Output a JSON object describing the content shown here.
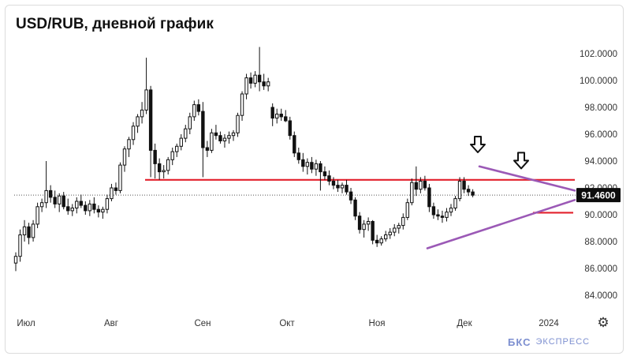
{
  "title": "USD/RUB, дневной график",
  "watermark": {
    "brand": "БКС",
    "word": "ЭКСПРЕСС"
  },
  "settings_icon": "gear-icon",
  "chart_data": {
    "type": "candlestick",
    "title": "USD/RUB, дневной график",
    "ylim": [
      83,
      103
    ],
    "y_ticks": [
      "84.0000",
      "86.0000",
      "88.0000",
      "90.0000",
      "92.0000",
      "94.0000",
      "96.0000",
      "98.0000",
      "100.0000",
      "102.0000"
    ],
    "x_ticks": [
      "Июл",
      "Авг",
      "Сен",
      "Окт",
      "Ноя",
      "Дек",
      "2024"
    ],
    "last_price": "91.4600",
    "last_price_value": 91.46,
    "support_resistance": [
      {
        "value": 92.6,
        "color": "#e3202c"
      },
      {
        "value": 90.15,
        "color": "#e3202c"
      }
    ],
    "trendlines": [
      {
        "from": [
          "2023-11-21",
          87.5
        ],
        "to": [
          "2023-12-29",
          91.1
        ],
        "color": "#9b59b6"
      },
      {
        "from": [
          "2023-12-07",
          93.6
        ],
        "to": [
          "2023-12-29",
          91.8
        ],
        "color": "#9b59b6"
      }
    ],
    "markers": [
      {
        "name": "arrow-down-icon",
        "date": "2023-12-07",
        "value": 95.0
      },
      {
        "name": "arrow-down-icon",
        "date": "2023-12-20",
        "value": 93.8
      }
    ],
    "candles": [
      [
        86.4,
        87.2,
        85.8,
        86.9
      ],
      [
        86.9,
        88.9,
        86.5,
        88.5
      ],
      [
        88.5,
        89.6,
        88.0,
        89.1
      ],
      [
        89.1,
        89.4,
        87.8,
        88.3
      ],
      [
        88.3,
        89.6,
        88.0,
        89.3
      ],
      [
        89.3,
        90.9,
        89.0,
        90.6
      ],
      [
        90.6,
        91.2,
        90.2,
        90.9
      ],
      [
        90.9,
        94.0,
        90.5,
        91.8
      ],
      [
        91.8,
        92.2,
        90.9,
        91.3
      ],
      [
        91.3,
        91.8,
        90.5,
        90.8
      ],
      [
        90.8,
        91.6,
        90.2,
        91.4
      ],
      [
        91.4,
        91.7,
        90.4,
        90.6
      ],
      [
        90.6,
        91.2,
        90.0,
        90.3
      ],
      [
        90.3,
        90.8,
        89.9,
        90.5
      ],
      [
        90.5,
        91.3,
        90.1,
        91.0
      ],
      [
        91.0,
        91.5,
        90.5,
        90.7
      ],
      [
        90.7,
        91.0,
        90.0,
        90.3
      ],
      [
        90.3,
        91.1,
        89.9,
        90.8
      ],
      [
        90.8,
        91.3,
        90.1,
        90.4
      ],
      [
        90.4,
        90.7,
        89.8,
        90.2
      ],
      [
        90.2,
        90.6,
        89.7,
        90.4
      ],
      [
        90.4,
        91.5,
        90.1,
        91.2
      ],
      [
        91.2,
        92.3,
        91.0,
        92.0
      ],
      [
        92.0,
        92.4,
        91.5,
        91.8
      ],
      [
        91.8,
        93.9,
        91.6,
        93.7
      ],
      [
        93.7,
        95.1,
        93.2,
        94.9
      ],
      [
        94.9,
        95.8,
        94.3,
        95.6
      ],
      [
        95.6,
        96.9,
        95.2,
        96.6
      ],
      [
        96.6,
        97.5,
        96.1,
        97.3
      ],
      [
        97.3,
        98.4,
        96.8,
        97.8
      ],
      [
        97.8,
        101.7,
        97.5,
        99.3
      ],
      [
        99.3,
        99.6,
        92.8,
        94.8
      ],
      [
        94.8,
        95.3,
        92.7,
        93.8
      ],
      [
        93.8,
        94.2,
        92.6,
        93.2
      ],
      [
        93.2,
        93.7,
        92.7,
        93.3
      ],
      [
        93.3,
        94.3,
        93.0,
        94.1
      ],
      [
        94.1,
        95.0,
        93.7,
        94.7
      ],
      [
        94.7,
        95.3,
        94.3,
        95.1
      ],
      [
        95.1,
        96.0,
        94.8,
        95.7
      ],
      [
        95.7,
        96.7,
        95.4,
        96.4
      ],
      [
        96.4,
        97.6,
        96.0,
        97.3
      ],
      [
        97.3,
        98.5,
        97.0,
        98.2
      ],
      [
        98.2,
        98.6,
        97.4,
        97.7
      ],
      [
        97.7,
        98.4,
        92.8,
        95.0
      ],
      [
        95.0,
        95.5,
        94.3,
        94.8
      ],
      [
        94.8,
        96.4,
        94.6,
        96.1
      ],
      [
        96.1,
        96.7,
        95.6,
        95.9
      ],
      [
        95.9,
        96.2,
        95.3,
        95.5
      ],
      [
        95.5,
        96.0,
        95.0,
        95.7
      ],
      [
        95.7,
        96.2,
        95.3,
        95.9
      ],
      [
        95.9,
        96.3,
        95.5,
        96.1
      ],
      [
        96.1,
        97.6,
        95.8,
        97.4
      ],
      [
        97.4,
        99.2,
        97.0,
        99.0
      ],
      [
        99.0,
        100.5,
        98.6,
        100.2
      ],
      [
        100.2,
        100.6,
        99.4,
        99.8
      ],
      [
        99.8,
        100.7,
        99.5,
        100.4
      ],
      [
        100.4,
        102.5,
        99.2,
        99.9
      ],
      [
        99.9,
        100.5,
        99.3,
        99.6
      ],
      [
        99.6,
        100.2,
        99.2,
        99.9
      ],
      [
        98.0,
        98.3,
        96.6,
        97.2
      ],
      [
        97.2,
        97.9,
        96.8,
        97.5
      ],
      [
        97.5,
        97.9,
        97.0,
        97.3
      ],
      [
        97.3,
        97.8,
        96.9,
        97.0
      ],
      [
        97.0,
        97.3,
        95.6,
        95.9
      ],
      [
        95.9,
        96.2,
        94.3,
        94.6
      ],
      [
        94.6,
        95.0,
        93.8,
        94.1
      ],
      [
        94.1,
        94.6,
        93.2,
        93.6
      ],
      [
        93.6,
        94.2,
        93.0,
        93.9
      ],
      [
        93.9,
        94.3,
        93.1,
        93.4
      ],
      [
        93.4,
        94.1,
        92.9,
        93.8
      ],
      [
        93.8,
        94.0,
        91.8,
        93.2
      ],
      [
        93.2,
        93.6,
        92.6,
        92.9
      ],
      [
        92.9,
        93.3,
        92.2,
        92.5
      ],
      [
        92.5,
        92.8,
        91.9,
        92.2
      ],
      [
        92.2,
        92.6,
        91.7,
        92.0
      ],
      [
        92.0,
        92.4,
        91.6,
        92.2
      ],
      [
        92.2,
        92.6,
        91.5,
        91.7
      ],
      [
        91.7,
        92.0,
        90.8,
        91.1
      ],
      [
        91.1,
        91.3,
        89.6,
        89.9
      ],
      [
        89.9,
        90.2,
        88.6,
        88.9
      ],
      [
        88.9,
        89.6,
        88.3,
        89.3
      ],
      [
        89.3,
        89.8,
        88.8,
        89.5
      ],
      [
        89.5,
        89.6,
        87.8,
        88.1
      ],
      [
        88.1,
        88.5,
        87.6,
        87.9
      ],
      [
        87.9,
        88.4,
        87.7,
        88.2
      ],
      [
        88.2,
        88.8,
        88.0,
        88.5
      ],
      [
        88.5,
        89.0,
        88.2,
        88.7
      ],
      [
        88.7,
        89.3,
        88.4,
        89.0
      ],
      [
        89.0,
        89.4,
        88.6,
        89.2
      ],
      [
        89.2,
        90.1,
        88.9,
        89.8
      ],
      [
        89.8,
        91.2,
        89.6,
        90.9
      ],
      [
        90.9,
        92.7,
        90.7,
        92.4
      ],
      [
        92.4,
        93.6,
        91.4,
        91.9
      ],
      [
        91.9,
        92.8,
        91.6,
        92.5
      ],
      [
        92.5,
        92.9,
        91.8,
        92.0
      ],
      [
        92.0,
        92.3,
        90.2,
        90.6
      ],
      [
        90.6,
        90.9,
        89.7,
        90.0
      ],
      [
        90.0,
        90.4,
        89.6,
        89.9
      ],
      [
        89.9,
        90.3,
        89.4,
        89.8
      ],
      [
        89.8,
        90.5,
        89.5,
        90.2
      ],
      [
        90.2,
        90.8,
        89.9,
        90.5
      ],
      [
        90.5,
        91.4,
        90.3,
        91.2
      ],
      [
        91.2,
        92.8,
        91.0,
        92.5
      ],
      [
        92.5,
        92.8,
        91.6,
        91.9
      ],
      [
        91.9,
        92.2,
        91.4,
        91.7
      ],
      [
        91.7,
        91.9,
        91.3,
        91.46
      ]
    ]
  }
}
